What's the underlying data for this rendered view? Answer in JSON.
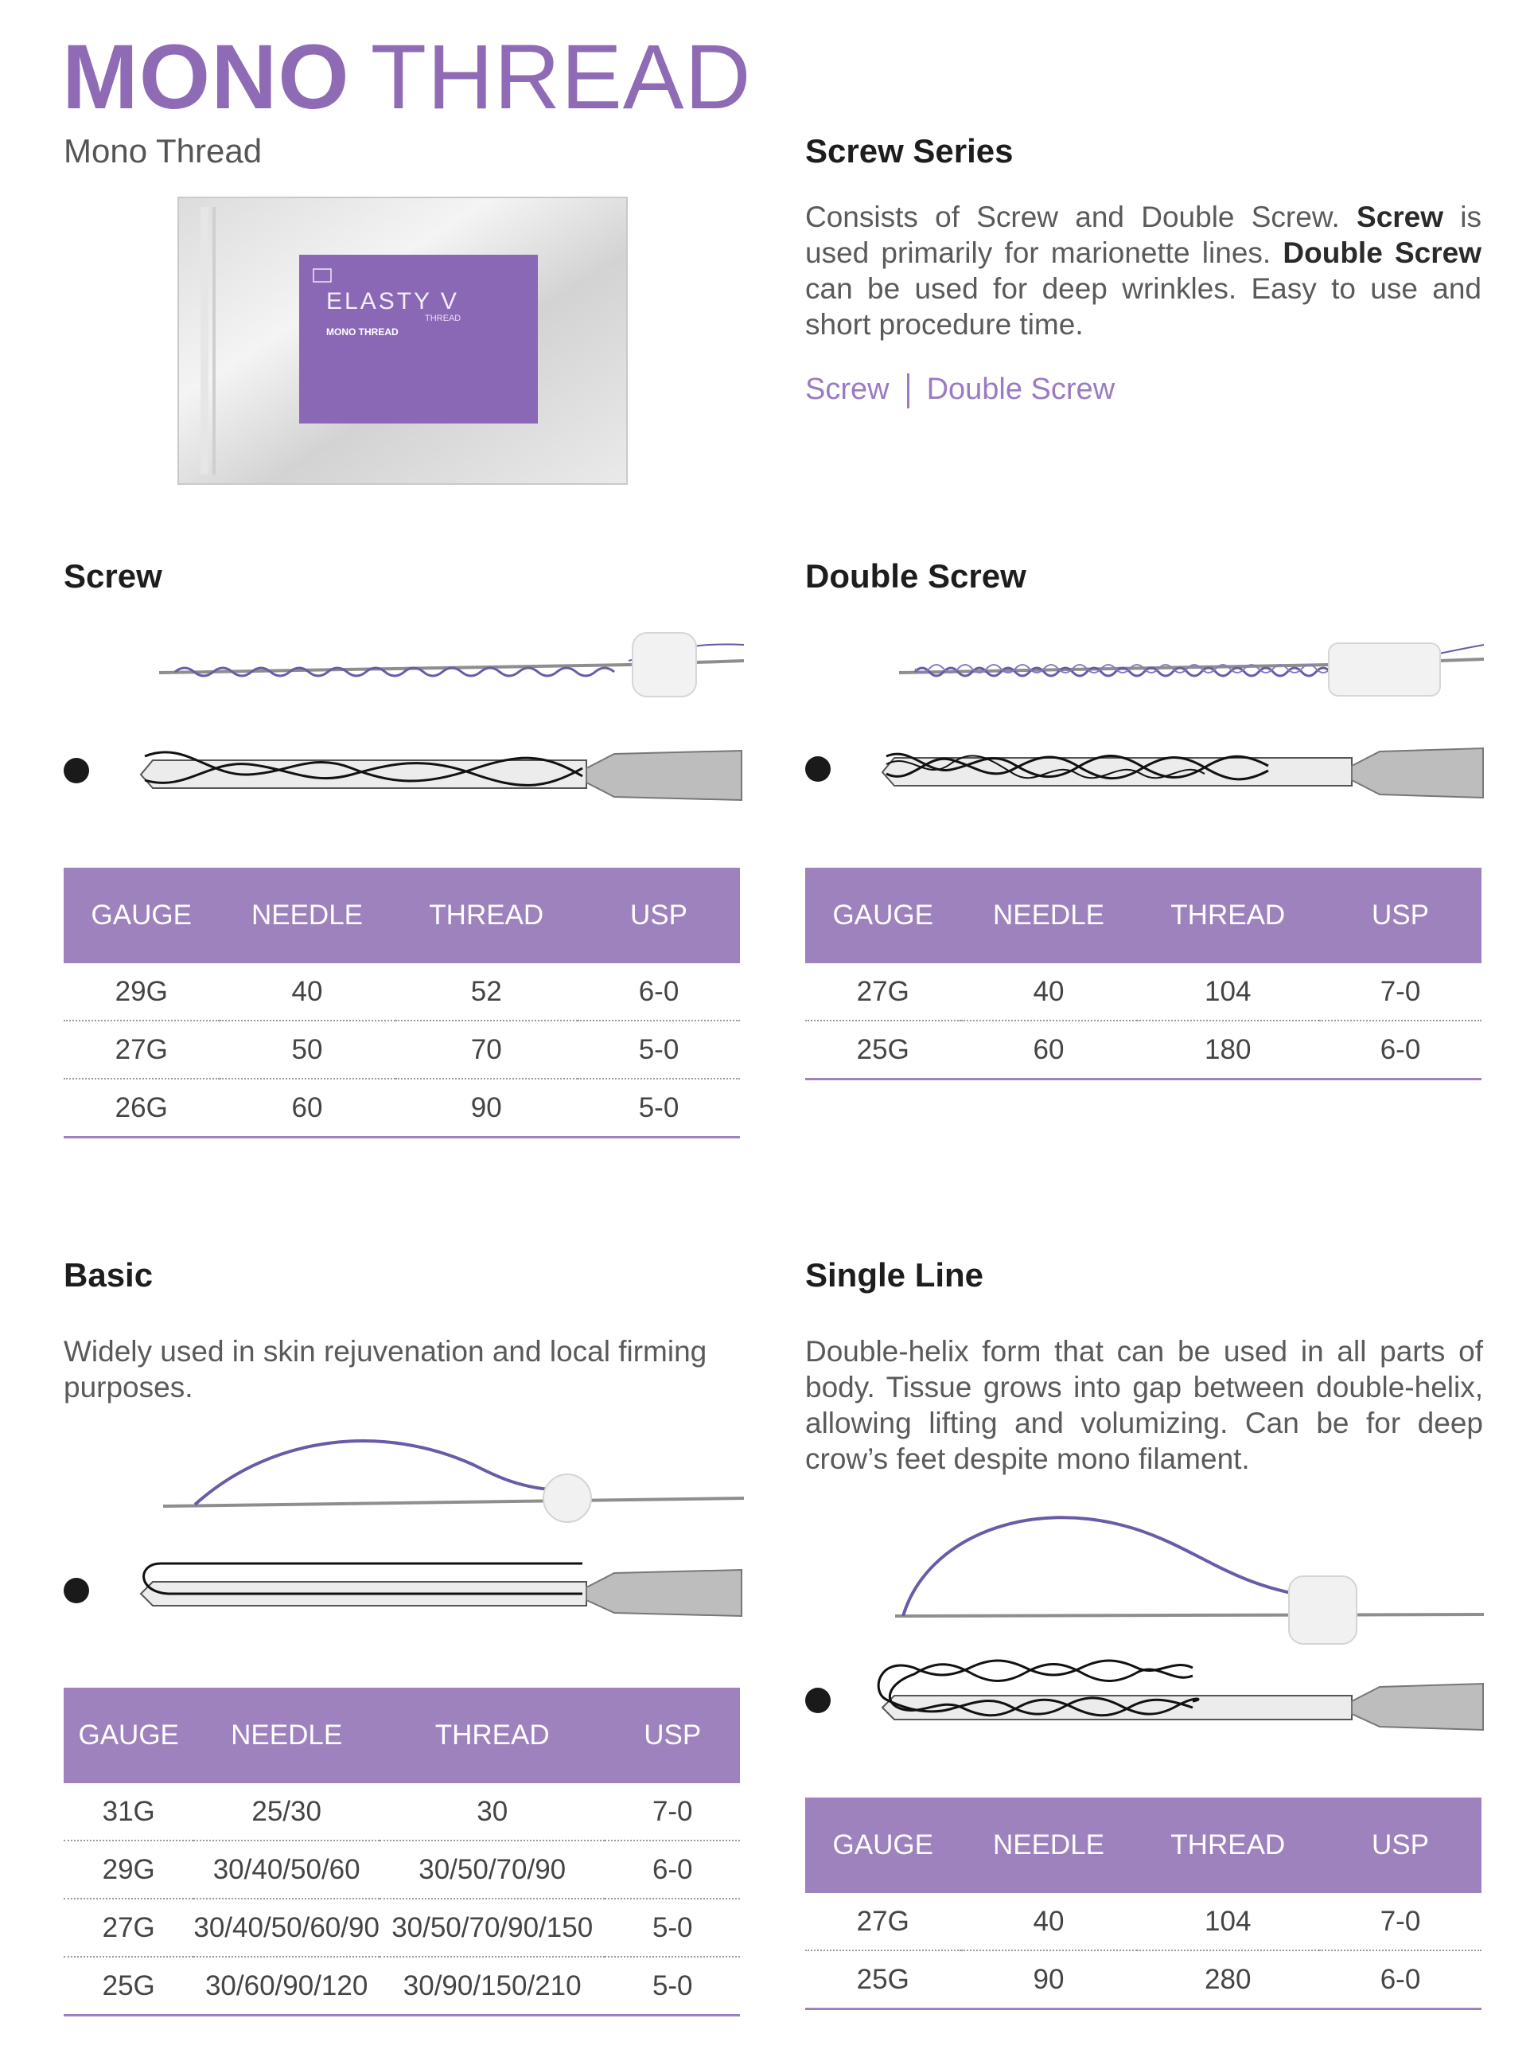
{
  "header": {
    "title_bold": "MONO",
    "title_light": "THREAD",
    "subtitle": "Mono Thread"
  },
  "package": {
    "brand": "ELASTY V",
    "line1": "MONO THREAD",
    "line2": "THREAD"
  },
  "screw_series": {
    "title": "Screw Series",
    "text_parts": [
      "Consists of Screw and Double Screw. ",
      "Screw",
      " is used primarily for marionette lines. ",
      "Double Screw",
      " can be used for deep wrinkles. Easy to use and short procedure time."
    ],
    "link_screw": "Screw",
    "link_double": "Double Screw"
  },
  "columns": {
    "gauge": "GAUGE",
    "needle": "NEEDLE",
    "thread": "THREAD",
    "usp": "USP"
  },
  "screw": {
    "title": "Screw",
    "rows": [
      [
        "29G",
        "40",
        "52",
        "6-0"
      ],
      [
        "27G",
        "50",
        "70",
        "5-0"
      ],
      [
        "26G",
        "60",
        "90",
        "5-0"
      ]
    ]
  },
  "double_screw": {
    "title": "Double Screw",
    "rows": [
      [
        "27G",
        "40",
        "104",
        "7-0"
      ],
      [
        "25G",
        "60",
        "180",
        "6-0"
      ]
    ]
  },
  "basic": {
    "title": "Basic",
    "text": "Widely used in skin rejuvenation and local firming purposes.",
    "rows": [
      [
        "31G",
        "25/30",
        "30",
        "7-0"
      ],
      [
        "29G",
        "30/40/50/60",
        "30/50/70/90",
        "6-0"
      ],
      [
        "27G",
        "30/40/50/60/90",
        "30/50/70/90/150",
        "5-0"
      ],
      [
        "25G",
        "30/60/90/120",
        "30/90/150/210",
        "5-0"
      ]
    ]
  },
  "single_line": {
    "title": "Single Line",
    "text": "Double-helix form that can be used in all parts of body. Tissue grows into gap between double-helix, allowing lifting and volumizing. Can be for deep crow’s feet despite mono filament.",
    "rows": [
      [
        "27G",
        "40",
        "104",
        "7-0"
      ],
      [
        "25G",
        "90",
        "280",
        "6-0"
      ]
    ]
  },
  "colors": {
    "accent": "#8f6bb6",
    "table_header": "#9e82bd",
    "thread": "#6b5aa8"
  }
}
